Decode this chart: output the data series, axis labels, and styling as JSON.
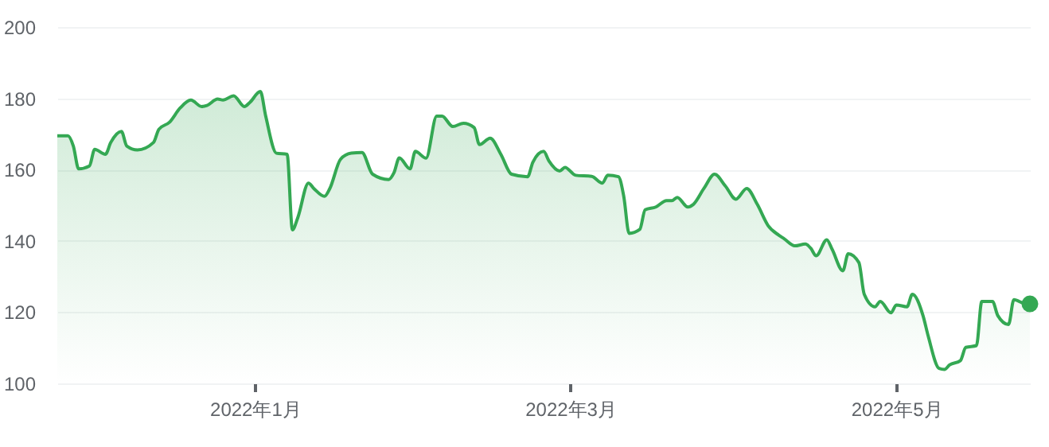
{
  "chart_data": {
    "type": "area",
    "x": [
      "2021-11-25",
      "2021-11-27",
      "2021-11-28",
      "2021-11-29",
      "2021-12-01",
      "2021-12-02",
      "2021-12-04",
      "2021-12-05",
      "2021-12-07",
      "2021-12-08",
      "2021-12-10",
      "2021-12-13",
      "2021-12-14",
      "2021-12-16",
      "2021-12-18",
      "2021-12-20",
      "2021-12-22",
      "2021-12-23",
      "2021-12-25",
      "2021-12-26",
      "2021-12-28",
      "2021-12-30",
      "2021-12-31",
      "2022-01-02",
      "2022-01-03",
      "2022-01-05",
      "2022-01-07",
      "2022-01-08",
      "2022-01-09",
      "2022-01-11",
      "2022-01-12",
      "2022-01-14",
      "2022-01-15",
      "2022-01-17",
      "2022-01-19",
      "2022-01-21",
      "2022-01-23",
      "2022-01-26",
      "2022-01-27",
      "2022-01-28",
      "2022-01-30",
      "2022-01-31",
      "2022-02-02",
      "2022-02-04",
      "2022-02-05",
      "2022-02-07",
      "2022-02-09",
      "2022-02-11",
      "2022-02-12",
      "2022-02-14",
      "2022-02-16",
      "2022-02-18",
      "2022-02-21",
      "2022-02-22",
      "2022-02-24",
      "2022-02-25",
      "2022-02-27",
      "2022-02-28",
      "2022-03-02",
      "2022-03-05",
      "2022-03-07",
      "2022-03-08",
      "2022-03-10",
      "2022-03-11",
      "2022-03-12",
      "2022-03-14",
      "2022-03-15",
      "2022-03-17",
      "2022-03-19",
      "2022-03-20",
      "2022-03-21",
      "2022-03-23",
      "2022-03-24",
      "2022-03-26",
      "2022-03-28",
      "2022-03-30",
      "2022-04-01",
      "2022-04-03",
      "2022-04-05",
      "2022-04-07",
      "2022-04-09",
      "2022-04-10",
      "2022-04-12",
      "2022-04-14",
      "2022-04-15",
      "2022-04-16",
      "2022-04-18",
      "2022-04-19",
      "2022-04-21",
      "2022-04-22",
      "2022-04-24",
      "2022-04-25",
      "2022-04-27",
      "2022-04-28",
      "2022-04-30",
      "2022-05-01",
      "2022-05-03",
      "2022-05-04",
      "2022-05-06",
      "2022-05-07",
      "2022-05-09",
      "2022-05-10",
      "2022-05-11",
      "2022-05-13",
      "2022-05-14",
      "2022-05-16",
      "2022-05-17",
      "2022-05-19",
      "2022-05-20",
      "2022-05-22",
      "2022-05-23",
      "2022-05-25",
      "2022-05-26"
    ],
    "series": [
      {
        "color": "#34a853",
        "values": [
          169.5,
          169.5,
          166.6,
          160.2,
          161,
          165.7,
          164.3,
          167.6,
          170.7,
          166.6,
          165.5,
          167.6,
          171.3,
          173.3,
          177.3,
          179.5,
          177.7,
          178,
          179.8,
          179.5,
          180.7,
          177.7,
          178.8,
          181.9,
          175,
          164.6,
          164.3,
          143.1,
          146.5,
          156.2,
          154.7,
          152.5,
          154.7,
          162.9,
          164.6,
          164.8,
          158.7,
          157.2,
          159.1,
          163.3,
          160.2,
          165.1,
          163.2,
          175,
          175,
          172.1,
          173,
          171.8,
          167,
          168.8,
          164.3,
          158.7,
          158,
          162.1,
          165.1,
          162.4,
          159.6,
          160.6,
          158.4,
          158.1,
          156.2,
          158.4,
          158,
          152.5,
          142.1,
          143.2,
          148.7,
          149.5,
          151.3,
          151.3,
          152.2,
          149.5,
          150.2,
          154.7,
          158.7,
          155.4,
          151.7,
          154.7,
          150.2,
          144.3,
          141.6,
          140.6,
          138.6,
          139.1,
          137.9,
          135.8,
          140.3,
          137.6,
          131.6,
          136.4,
          133.9,
          125,
          121.5,
          123,
          119.8,
          122,
          121.5,
          125,
          119,
          113.1,
          104.2,
          103.9,
          105.2,
          106.4,
          110.1,
          110.6,
          123,
          123,
          119,
          116.5,
          123.5,
          122.4,
          122.3
        ]
      },
      {
        "type": "scatter",
        "color": "#34a853",
        "x": [
          "2022-05-26"
        ],
        "values": [
          122.3
        ]
      }
    ],
    "xlim": [
      "2021-11-25",
      "2022-05-26"
    ],
    "xticks": [
      {
        "value": "2022-01-01",
        "label": "2022年1月"
      },
      {
        "value": "2022-03-01",
        "label": "2022年3月"
      },
      {
        "value": "2022-05-01",
        "label": "2022年5月"
      }
    ],
    "ylim": [
      100,
      200
    ],
    "yticks": [
      100,
      120,
      140,
      160,
      180,
      200
    ],
    "grid": "y"
  }
}
